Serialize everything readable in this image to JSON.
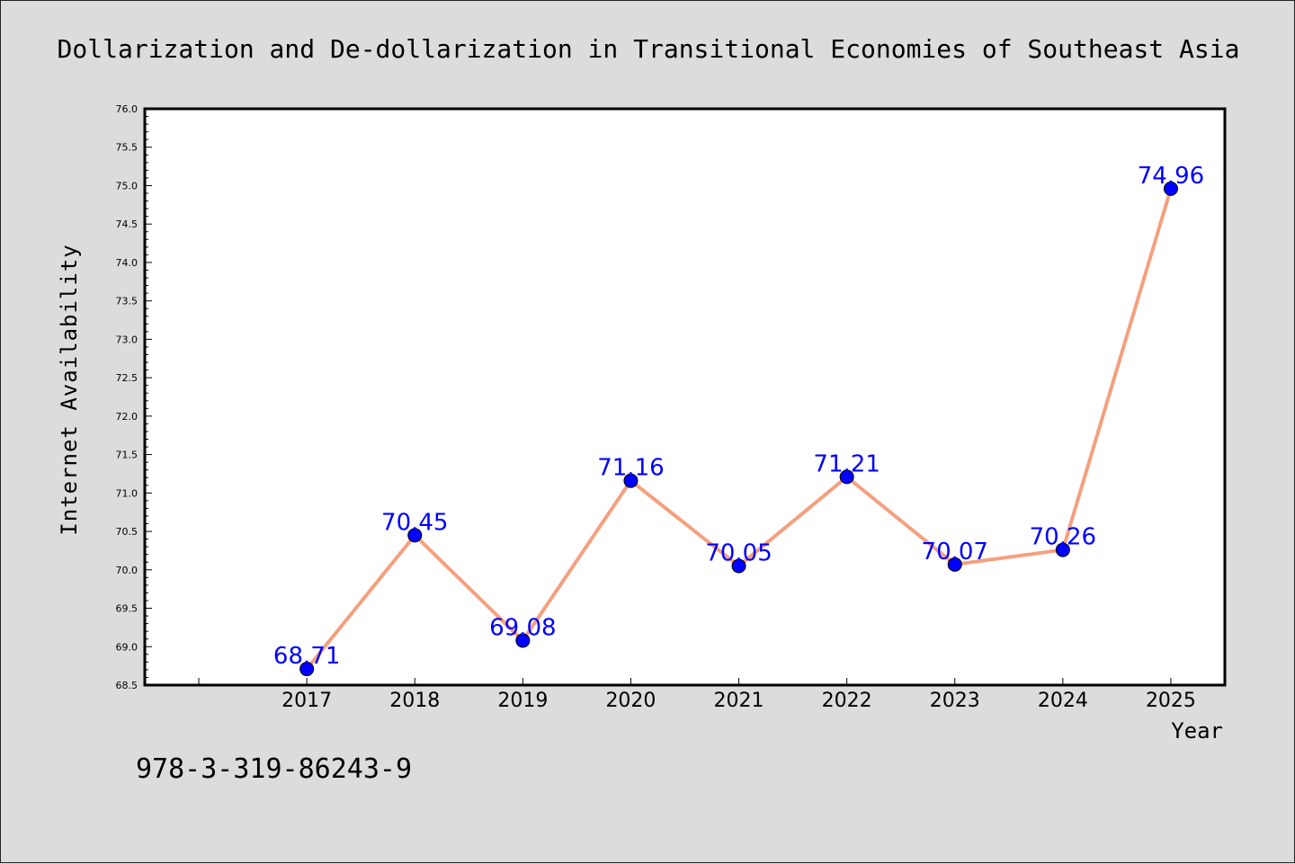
{
  "colors": {
    "background": "#dcdcdc",
    "plot_background": "#ffffff",
    "line": "#f4a07f",
    "marker": "#0000ff",
    "data_label": "#0000ff"
  },
  "footnote": "978-3-319-86243-9",
  "chart_data": {
    "type": "line",
    "title": "Dollarization and De-dollarization in Transitional Economies of Southeast Asia",
    "xlabel": "Year",
    "ylabel": "Internet Availability",
    "categories": [
      "2017",
      "2018",
      "2019",
      "2020",
      "2021",
      "2022",
      "2023",
      "2024",
      "2025"
    ],
    "x": [
      2017,
      2018,
      2019,
      2020,
      2021,
      2022,
      2023,
      2024,
      2025
    ],
    "xlim": [
      2015.5,
      2025.5
    ],
    "series": [
      {
        "values": [
          68.71,
          70.45,
          69.08,
          71.16,
          70.05,
          71.21,
          70.07,
          70.26,
          74.96
        ],
        "labels": [
          "68.71",
          "70.45",
          "69.08",
          "71.16",
          "70.05",
          "71.21",
          "70.07",
          "70.26",
          "74.96"
        ]
      }
    ],
    "ylim": [
      68.5,
      76.0
    ],
    "yticks": [
      "68.5",
      "69.0",
      "69.5",
      "70.0",
      "70.5",
      "71.0",
      "71.5",
      "72.0",
      "72.5",
      "73.0",
      "73.5",
      "74.0",
      "74.5",
      "75.0",
      "75.5",
      "76.0"
    ],
    "grid": false,
    "legend": "none"
  }
}
